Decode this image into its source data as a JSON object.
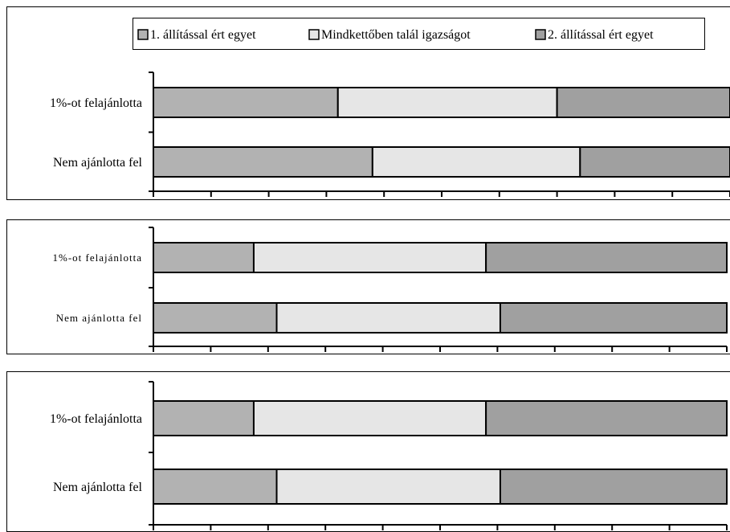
{
  "colors": {
    "series1": "#b2b2b2",
    "series2": "#e6e6e6",
    "series3": "#a0a0a0",
    "stroke": "#000000"
  },
  "legend": {
    "items": [
      "1. állítással ért egyet",
      "Mindkettőben talál igazságot",
      "2. állítással ért egyet"
    ]
  },
  "chart_data": [
    {
      "type": "bar",
      "orientation": "horizontal",
      "stacked": true,
      "legend": "top",
      "grid": false,
      "xlim": [
        0,
        100
      ],
      "categories": [
        "1%-ot felajánlotta",
        "Nem ajánlotta fel"
      ],
      "series": [
        {
          "name": "1. állítással ért egyet",
          "values": [
            32,
            38
          ]
        },
        {
          "name": "Mindkettőben talál igazságot",
          "values": [
            38,
            36
          ]
        },
        {
          "name": "2. állítással ért egyet",
          "values": [
            30,
            26
          ]
        }
      ]
    },
    {
      "type": "bar",
      "orientation": "horizontal",
      "stacked": true,
      "legend": "none",
      "grid": false,
      "xlim": [
        0,
        100
      ],
      "categories": [
        "1%-ot felajánlotta",
        "Nem ajánlotta fel"
      ],
      "series": [
        {
          "name": "1. állítással ért egyet",
          "values": [
            17.5,
            21.5
          ]
        },
        {
          "name": "Mindkettőben talál igazságot",
          "values": [
            40.5,
            39
          ]
        },
        {
          "name": "2. állítással ért egyet",
          "values": [
            42,
            39.5
          ]
        }
      ]
    },
    {
      "type": "bar",
      "orientation": "horizontal",
      "stacked": true,
      "legend": "none",
      "grid": false,
      "xlim": [
        0,
        100
      ],
      "categories": [
        "1%-ot felajánlotta",
        "Nem ajánlotta fel"
      ],
      "series": [
        {
          "name": "1. állítással ért egyet",
          "values": [
            17.5,
            21.5
          ]
        },
        {
          "name": "Mindkettőben talál igazságot",
          "values": [
            40.5,
            39
          ]
        },
        {
          "name": "2. állítással ért egyet",
          "values": [
            42,
            39.5
          ]
        }
      ]
    }
  ]
}
